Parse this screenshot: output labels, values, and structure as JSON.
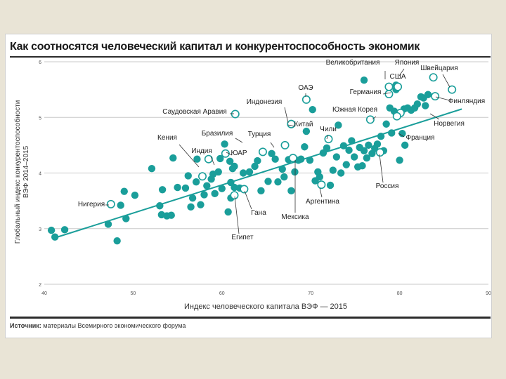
{
  "chart_data": {
    "type": "scatter",
    "title": "Как соотносятся человеческий капитал и конкурентоспособность экономик",
    "xlabel": "Индекс человеческого капитала ВЭФ — 2015",
    "ylabel_line1": "Глобальный индекс конкурентоспособности",
    "ylabel_line2": "ВЭФ 2014–2015",
    "xlim": [
      40,
      90
    ],
    "ylim": [
      2,
      6
    ],
    "x_ticks": [
      "40",
      "50",
      "60",
      "70",
      "80",
      "90"
    ],
    "y_ticks": [
      "2",
      "3",
      "4",
      "5",
      "6"
    ],
    "grid": "horizontal",
    "trendline": {
      "x": [
        41.5,
        87
      ],
      "y": [
        2.85,
        5.15
      ]
    },
    "colors": {
      "points": "#1a9e9a",
      "trend": "#1a9e9a",
      "highlight_fill": "#ffffff"
    },
    "highlighted": [
      {
        "label": "Великобритания",
        "x": 78.8,
        "y": 5.55
      },
      {
        "label": "Япония",
        "x": 83.8,
        "y": 5.72
      },
      {
        "label": "Швейцария",
        "x": 85.9,
        "y": 5.5
      },
      {
        "label": "США",
        "x": 79.8,
        "y": 5.55
      },
      {
        "label": "ОАЭ",
        "x": 69.5,
        "y": 5.32
      },
      {
        "label": "Германия",
        "x": 78.8,
        "y": 5.42
      },
      {
        "label": "Финляндия",
        "x": 84.0,
        "y": 5.38
      },
      {
        "label": "Индонезия",
        "x": 67.8,
        "y": 4.88
      },
      {
        "label": "Саудовская Аравия",
        "x": 61.5,
        "y": 5.06
      },
      {
        "label": "Южная Корея",
        "x": 76.7,
        "y": 4.96
      },
      {
        "label": "Норвегия",
        "x": 80.1,
        "y": 5.08
      },
      {
        "label": "Китай",
        "x": 67.8,
        "y": 4.88
      },
      {
        "label": "Бразилия",
        "x": 67.1,
        "y": 4.5
      },
      {
        "label": "Турция",
        "x": 64.6,
        "y": 4.38
      },
      {
        "label": "Чили",
        "x": 72.0,
        "y": 4.61
      },
      {
        "label": "Кения",
        "x": 57.8,
        "y": 3.94
      },
      {
        "label": "Индия",
        "x": 58.5,
        "y": 4.25
      },
      {
        "label": "ЮАР",
        "x": 60.4,
        "y": 4.35
      },
      {
        "label": "Франция",
        "x": 79.7,
        "y": 5.02
      },
      {
        "label": "Нигерия",
        "x": 47.5,
        "y": 3.44
      },
      {
        "label": "Россия",
        "x": 77.8,
        "y": 4.37
      },
      {
        "label": "Гана",
        "x": 62.5,
        "y": 3.71
      },
      {
        "label": "Египет",
        "x": 61.4,
        "y": 3.6
      },
      {
        "label": "Мексика",
        "x": 68.0,
        "y": 4.27
      },
      {
        "label": "Аргентина",
        "x": 71.2,
        "y": 3.79
      }
    ],
    "points": [
      [
        40.8,
        2.97
      ],
      [
        41.2,
        2.85
      ],
      [
        42.3,
        2.98
      ],
      [
        47.2,
        3.08
      ],
      [
        48.2,
        2.78
      ],
      [
        48.6,
        3.42
      ],
      [
        49.0,
        3.67
      ],
      [
        49.2,
        3.18
      ],
      [
        50.2,
        3.6
      ],
      [
        52.1,
        4.08
      ],
      [
        53.0,
        3.41
      ],
      [
        53.3,
        3.7
      ],
      [
        53.2,
        3.25
      ],
      [
        53.8,
        3.23
      ],
      [
        54.3,
        3.24
      ],
      [
        54.5,
        4.27
      ],
      [
        55.0,
        3.74
      ],
      [
        55.9,
        3.73
      ],
      [
        56.2,
        3.95
      ],
      [
        56.5,
        3.39
      ],
      [
        56.7,
        3.55
      ],
      [
        57.1,
        3.84
      ],
      [
        57.2,
        4.25
      ],
      [
        57.6,
        3.43
      ],
      [
        58.0,
        3.61
      ],
      [
        58.3,
        3.77
      ],
      [
        58.8,
        3.89
      ],
      [
        59.0,
        3.98
      ],
      [
        59.2,
        3.63
      ],
      [
        59.6,
        4.02
      ],
      [
        59.8,
        4.26
      ],
      [
        60.0,
        3.72
      ],
      [
        60.3,
        4.52
      ],
      [
        60.9,
        4.21
      ],
      [
        61.2,
        4.08
      ],
      [
        61.4,
        4.12
      ],
      [
        61.0,
        3.55
      ],
      [
        60.7,
        3.3
      ],
      [
        61.0,
        3.83
      ],
      [
        61.4,
        3.74
      ],
      [
        62.0,
        3.73
      ],
      [
        62.4,
        4.0
      ],
      [
        63.1,
        4.02
      ],
      [
        63.7,
        4.12
      ],
      [
        64.0,
        4.22
      ],
      [
        64.4,
        3.68
      ],
      [
        65.2,
        3.85
      ],
      [
        65.6,
        4.35
      ],
      [
        66.0,
        4.25
      ],
      [
        66.3,
        3.84
      ],
      [
        66.8,
        4.07
      ],
      [
        67.0,
        3.93
      ],
      [
        67.5,
        4.24
      ],
      [
        67.8,
        3.68
      ],
      [
        68.2,
        4.02
      ],
      [
        68.6,
        4.23
      ],
      [
        68.9,
        4.25
      ],
      [
        69.3,
        4.47
      ],
      [
        69.5,
        4.75
      ],
      [
        69.9,
        4.23
      ],
      [
        70.2,
        5.14
      ],
      [
        70.5,
        3.86
      ],
      [
        70.8,
        4.02
      ],
      [
        71.0,
        3.93
      ],
      [
        71.4,
        4.36
      ],
      [
        71.8,
        4.45
      ],
      [
        72.2,
        3.78
      ],
      [
        72.5,
        4.05
      ],
      [
        72.9,
        4.29
      ],
      [
        73.1,
        4.86
      ],
      [
        73.4,
        4.0
      ],
      [
        73.7,
        4.49
      ],
      [
        74.0,
        4.15
      ],
      [
        74.3,
        4.41
      ],
      [
        74.6,
        4.58
      ],
      [
        74.9,
        4.29
      ],
      [
        75.3,
        4.11
      ],
      [
        75.5,
        4.46
      ],
      [
        75.8,
        4.13
      ],
      [
        76.0,
        4.4
      ],
      [
        76.3,
        4.27
      ],
      [
        76.5,
        4.5
      ],
      [
        76.9,
        4.35
      ],
      [
        77.2,
        4.44
      ],
      [
        77.5,
        4.52
      ],
      [
        77.9,
        4.66
      ],
      [
        78.2,
        4.4
      ],
      [
        78.5,
        4.88
      ],
      [
        78.9,
        5.17
      ],
      [
        79.1,
        4.72
      ],
      [
        79.4,
        5.11
      ],
      [
        79.6,
        5.58
      ],
      [
        80.0,
        4.23
      ],
      [
        80.3,
        4.71
      ],
      [
        80.5,
        5.15
      ],
      [
        80.9,
        5.17
      ],
      [
        81.3,
        5.13
      ],
      [
        81.7,
        5.17
      ],
      [
        82.0,
        5.24
      ],
      [
        82.4,
        5.37
      ],
      [
        82.7,
        5.35
      ],
      [
        82.9,
        5.21
      ],
      [
        83.2,
        5.41
      ],
      [
        80.6,
        4.5
      ],
      [
        76.0,
        5.67
      ],
      [
        79.6,
        5.5
      ]
    ]
  },
  "source_label": "Источник:",
  "source_text": "материалы Всемирного экономического форума"
}
